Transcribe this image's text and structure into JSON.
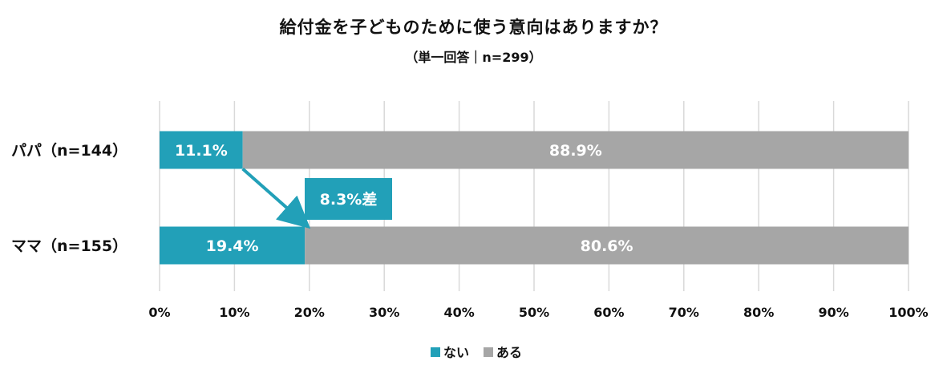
{
  "colors": {
    "nai": "#22a0b8",
    "aru": "#a6a6a6",
    "grid": "#d9d9d9"
  },
  "chart_data": {
    "type": "bar",
    "orientation": "horizontal",
    "stacked": true,
    "title": "給付金を子どものために使う意向はありますか？",
    "subtitle": "（単一回答｜n=299）",
    "categories": [
      "パパ（n=144）",
      "ママ（n=155）"
    ],
    "series": [
      {
        "name": "ない",
        "values": [
          11.1,
          19.4
        ],
        "labels": [
          "11.1%",
          "19.4%"
        ]
      },
      {
        "name": "ある",
        "values": [
          88.9,
          80.6
        ],
        "labels": [
          "88.9%",
          "80.6%"
        ]
      }
    ],
    "xlim": [
      0,
      100
    ],
    "xticks": [
      "0%",
      "10%",
      "20%",
      "30%",
      "40%",
      "50%",
      "60%",
      "70%",
      "80%",
      "90%",
      "100%"
    ],
    "grid": true,
    "legend_position": "bottom",
    "annotation": {
      "text": "8.3%差"
    }
  }
}
